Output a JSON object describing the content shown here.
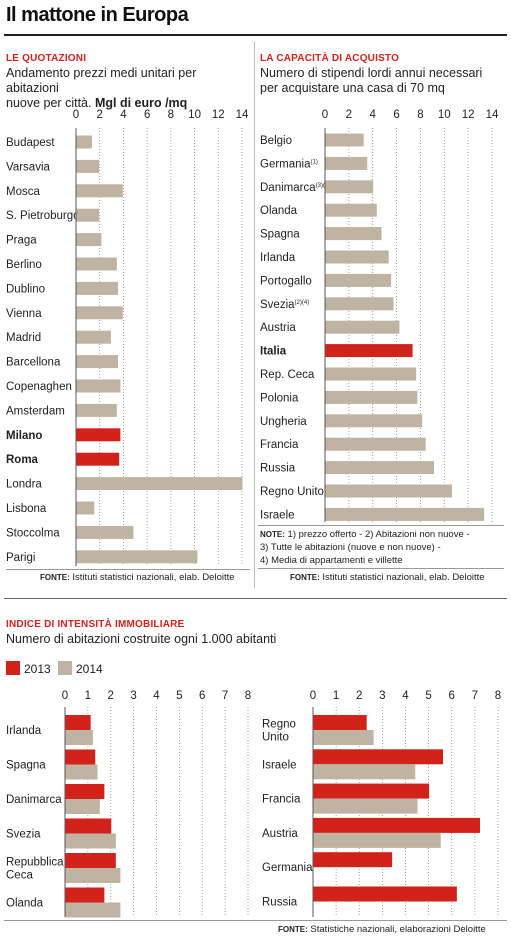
{
  "title": "Il mattone in Europa",
  "colors": {
    "highlight": "#d2231a",
    "bar": "#bfb3a1",
    "y2013": "#d2231a",
    "y2014": "#bfb3a1",
    "grid": "#8a8a8a",
    "baseline": "#555555"
  },
  "left_panel": {
    "section_label": "LE QUOTAZIONI",
    "subtitle_line1": "Andamento prezzi medi unitari per abitazioni",
    "subtitle_line2_plain": "nuove per città. ",
    "subtitle_line2_bold": "Mgl di euro /mq",
    "source_prefix": "FONTE:",
    "source_text": " Istituti statistici nazionali, elab. Deloitte"
  },
  "right_panel": {
    "section_label": "LA CAPACITÀ DI ACQUISTO",
    "subtitle_line1": "Numero di stipendi lordi annui necessari",
    "subtitle_line2": "per acquistare una casa di 70 mq",
    "note_prefix": "NOTE:",
    "note_line1": " 1) prezzo offerto - 2) Abitazioni non nuove -",
    "note_line2": "3) Tutte le abitazioni (nuove e non nuove) -",
    "note_line3": "4) Media di appartamenti e villette",
    "source_prefix": "FONTE:",
    "source_text": " Istituti statistici nazionali, elab. Deloitte"
  },
  "bottom_panel": {
    "section_label": "INDICE DI INTENSITÀ IMMOBILIARE",
    "subtitle": "Numero di abitazioni costruite ogni 1.000 abitanti",
    "legend": [
      "2013",
      "2014"
    ],
    "source_prefix": "FONTE:",
    "source_text": " Statistiche nazionali, elaborazioni Deloitte"
  },
  "chart_data": [
    {
      "type": "bar",
      "orientation": "horizontal",
      "title": "LE QUOTAZIONI",
      "xlim": [
        0,
        14
      ],
      "ticks": [
        "0",
        "2",
        "4",
        "6",
        "8",
        "10",
        "12",
        "14"
      ],
      "grid": true,
      "categories": [
        "Budapest",
        "Varsavia",
        "Mosca",
        "S. Pietroburgo",
        "Praga",
        "Berlino",
        "Dublino",
        "Vienna",
        "Madrid",
        "Barcellona",
        "Copenaghen",
        "Amsterdam",
        "Milano",
        "Roma",
        "Londra",
        "Lisbona",
        "Stoccolma",
        "Parigi"
      ],
      "superscripts": [
        "",
        "",
        "",
        "",
        "",
        "",
        "",
        "",
        "",
        "",
        "",
        "",
        "",
        "",
        "",
        "",
        "",
        ""
      ],
      "values": [
        1.3,
        1.9,
        3.9,
        1.9,
        2.1,
        3.4,
        3.5,
        3.9,
        2.9,
        3.5,
        3.7,
        3.4,
        3.7,
        3.6,
        14.0,
        1.5,
        4.8,
        10.2
      ],
      "highlighted": [
        "Milano",
        "Roma"
      ]
    },
    {
      "type": "bar",
      "orientation": "horizontal",
      "title": "LA CAPACITÀ DI ACQUISTO",
      "xlim": [
        0,
        14
      ],
      "ticks": [
        "0",
        "2",
        "4",
        "6",
        "8",
        "10",
        "12",
        "14"
      ],
      "grid": true,
      "categories": [
        "Belgio",
        "Germania",
        "Danimarca",
        "Olanda",
        "Spagna",
        "Irlanda",
        "Portogallo",
        "Svezia",
        "Austria",
        "Italia",
        "Rep. Ceca",
        "Polonia",
        "Ungheria",
        "Francia",
        "Russia",
        "Regno Unito",
        "Israele"
      ],
      "superscripts": [
        "",
        "(1)",
        "(3)(4)",
        "",
        "",
        "",
        "",
        "(2)(4)",
        "",
        "",
        "",
        "",
        "",
        "",
        "",
        "",
        ""
      ],
      "values": [
        3.2,
        3.5,
        4.0,
        4.3,
        4.7,
        5.3,
        5.5,
        5.7,
        6.2,
        7.3,
        7.6,
        7.7,
        8.1,
        8.4,
        9.1,
        10.6,
        13.3
      ],
      "highlighted": [
        "Italia"
      ]
    },
    {
      "type": "bar",
      "orientation": "horizontal",
      "title": "INDICE DI INTENSITÀ IMMOBILIARE",
      "xlim": [
        0,
        8
      ],
      "ticks": [
        "0",
        "1",
        "2",
        "3",
        "4",
        "5",
        "6",
        "7",
        "8"
      ],
      "grid": true,
      "categories": [
        "Irlanda",
        "Spagna",
        "Danimarca",
        "Svezia",
        "Repubblica Ceca",
        "Olanda"
      ],
      "series": [
        {
          "name": "2013",
          "values": [
            1.1,
            1.3,
            1.7,
            2.0,
            2.2,
            1.7
          ]
        },
        {
          "name": "2014",
          "values": [
            1.2,
            1.4,
            1.5,
            2.2,
            2.4,
            2.4
          ]
        }
      ]
    },
    {
      "type": "bar",
      "orientation": "horizontal",
      "title": "INDICE DI INTENSITÀ IMMOBILIARE",
      "xlim": [
        0,
        8
      ],
      "ticks": [
        "0",
        "1",
        "2",
        "3",
        "4",
        "5",
        "6",
        "7",
        "8"
      ],
      "grid": true,
      "categories": [
        "Regno Unito",
        "Israele",
        "Francia",
        "Austria",
        "Germania",
        "Russia"
      ],
      "series": [
        {
          "name": "2013",
          "values": [
            2.3,
            5.6,
            5.0,
            7.2,
            3.4,
            6.2
          ]
        },
        {
          "name": "2014",
          "values": [
            2.6,
            4.4,
            4.5,
            5.5,
            null,
            null
          ]
        }
      ]
    }
  ]
}
